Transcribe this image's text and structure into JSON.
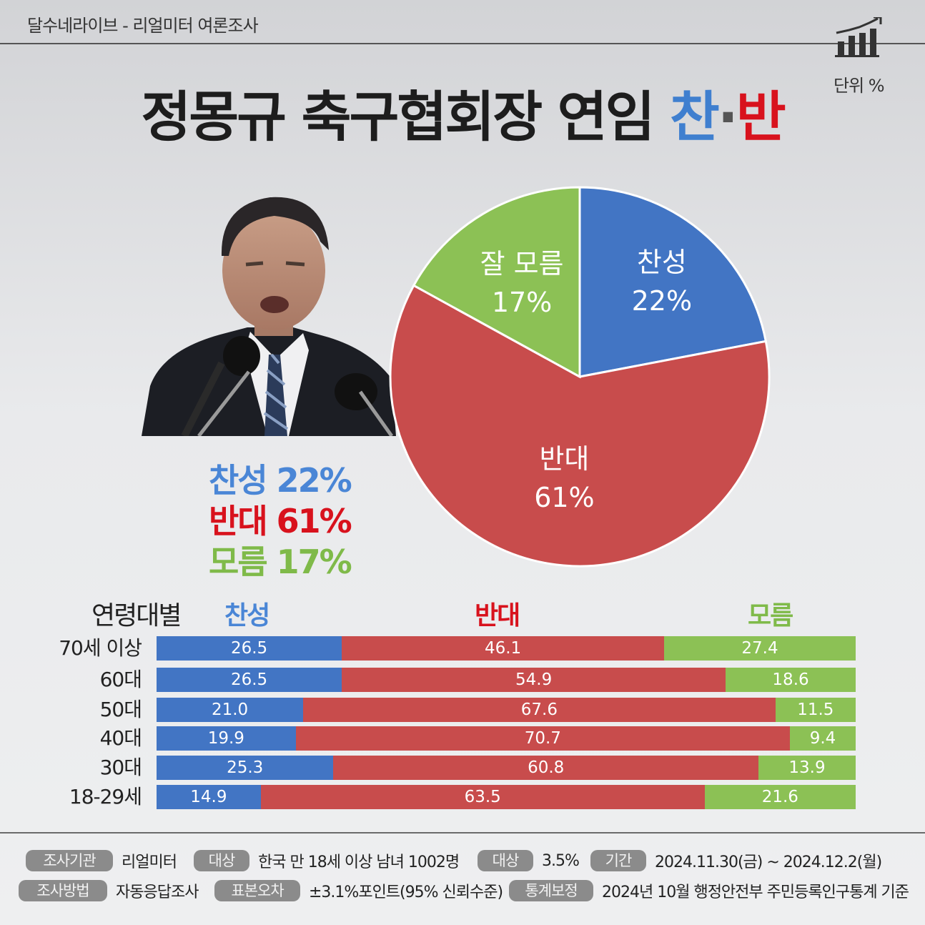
{
  "header": {
    "source": "달수네라이브 - 리얼미터 여론조사",
    "unit": "단위 %",
    "icon": "bar-chart-trend-icon"
  },
  "title": {
    "main": "정몽규 축구협회장 연임 ",
    "pro": "찬",
    "dot": "·",
    "con": "반"
  },
  "summary": {
    "pro": "찬성 22%",
    "con": "반대 61%",
    "dk": "모름 17%"
  },
  "colors": {
    "pro": "#4275c4",
    "con": "#c84c4c",
    "dk": "#8cc155",
    "pro_text": "#4a86d6",
    "con_text": "#d8121d",
    "dk_text": "#7fba49"
  },
  "chart_data": [
    {
      "type": "pie",
      "slices": [
        {
          "label": "찬성",
          "value": 22,
          "value_label": "22%"
        },
        {
          "label": "반대",
          "value": 61,
          "value_label": "61%"
        },
        {
          "label": "잘 모름",
          "value": 17,
          "value_label": "17%"
        }
      ]
    },
    {
      "type": "bar",
      "orientation": "horizontal",
      "stacked": true,
      "category_header": "연령대별",
      "categories": [
        "70세 이상",
        "60대",
        "50대",
        "40대",
        "30대",
        "18-29세"
      ],
      "series": [
        {
          "name": "찬성",
          "values": [
            26.5,
            26.5,
            21.0,
            19.9,
            25.3,
            14.9
          ]
        },
        {
          "name": "반대",
          "values": [
            46.1,
            54.9,
            67.6,
            70.7,
            60.8,
            63.5
          ]
        },
        {
          "name": "모름",
          "values": [
            27.4,
            18.6,
            11.5,
            9.4,
            13.9,
            21.6
          ]
        }
      ]
    }
  ],
  "bar_value_labels": [
    [
      "26.5",
      "46.1",
      "27.4"
    ],
    [
      "26.5",
      "54.9",
      "18.6"
    ],
    [
      "21.0",
      "67.6",
      "11.5"
    ],
    [
      "19.9",
      "70.7",
      "9.4"
    ],
    [
      "25.3",
      "60.8",
      "13.9"
    ],
    [
      "14.9",
      "63.5",
      "21.6"
    ]
  ],
  "footer": {
    "agency_tag": "조사기관",
    "agency": "리얼미터",
    "target_tag": "대상",
    "target": "한국 만 18세 이상 남녀 1002명",
    "rate_tag": "대상",
    "rate": "3.5%",
    "period_tag": "기간",
    "period": "2024.11.30(금) ~ 2024.12.2(월)",
    "method_tag": "조사방법",
    "method": "자동응답조사",
    "error_tag": "표본오차",
    "error": "±3.1%포인트(95% 신뢰수준)",
    "weight_tag": "통계보정",
    "weight": "2024년 10월 행정안전부 주민등록인구통계 기준"
  }
}
